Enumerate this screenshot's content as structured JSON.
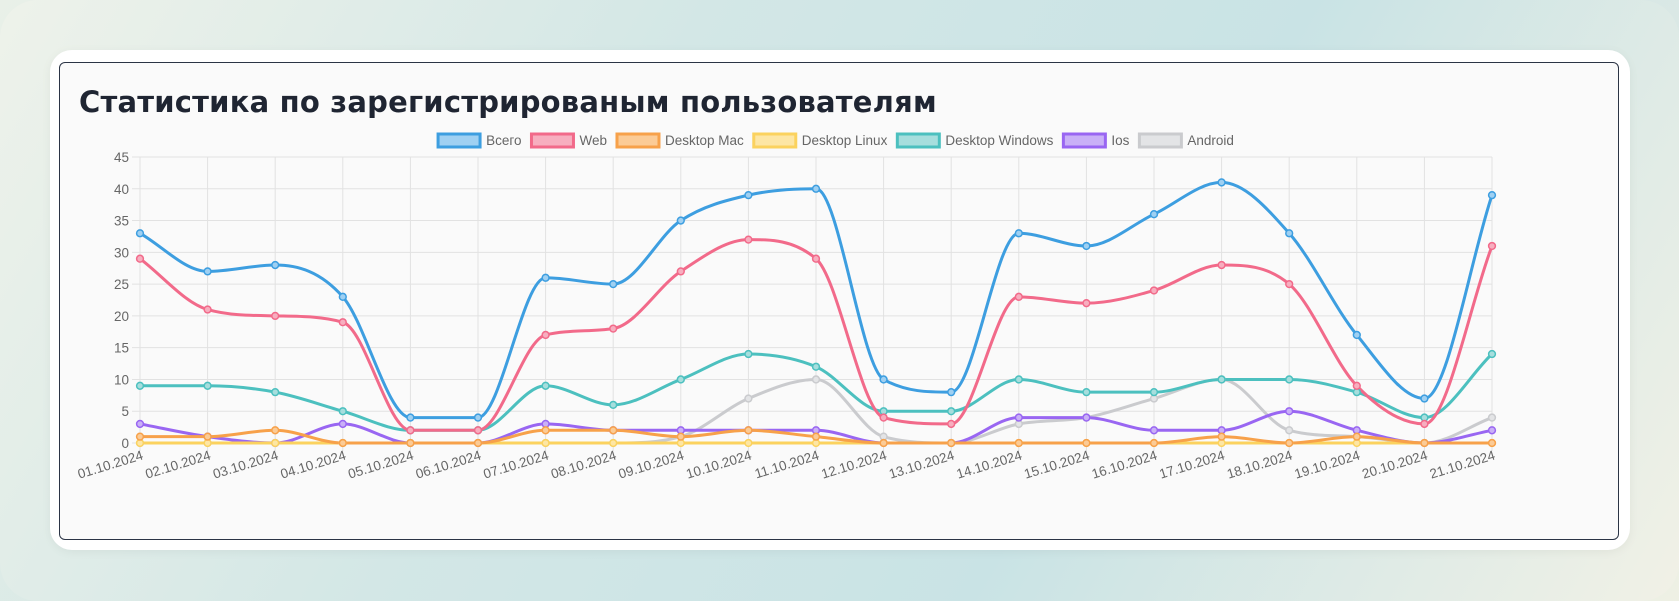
{
  "page": {
    "title": "Статистика по зарегистрированым пользователям"
  },
  "chart_data": {
    "type": "line",
    "title": "Статистика по зарегистрированым пользователям",
    "xlabel": "",
    "ylabel": "",
    "ylim": [
      0,
      45
    ],
    "yticks": [
      "0",
      "5",
      "10",
      "15",
      "20",
      "25",
      "30",
      "35",
      "40",
      "45"
    ],
    "grid": true,
    "legend_position": "top",
    "categories": [
      "01.10.2024",
      "02.10.2024",
      "03.10.2024",
      "04.10.2024",
      "05.10.2024",
      "06.10.2024",
      "07.10.2024",
      "08.10.2024",
      "09.10.2024",
      "10.10.2024",
      "11.10.2024",
      "12.10.2024",
      "13.10.2024",
      "14.10.2024",
      "15.10.2024",
      "16.10.2024",
      "17.10.2024",
      "18.10.2024",
      "19.10.2024",
      "20.10.2024",
      "21.10.2024"
    ],
    "series": [
      {
        "name": "Всего",
        "color": "#3d9ee0",
        "fill": "#9fd0f2",
        "values": [
          33,
          27,
          28,
          23,
          4,
          4,
          26,
          25,
          35,
          39,
          40,
          10,
          8,
          33,
          31,
          36,
          41,
          33,
          17,
          7,
          39
        ]
      },
      {
        "name": "Web",
        "color": "#f26a8a",
        "fill": "#f7aebf",
        "values": [
          29,
          21,
          20,
          19,
          2,
          2,
          17,
          18,
          27,
          32,
          29,
          4,
          3,
          23,
          22,
          24,
          28,
          25,
          9,
          3,
          31
        ]
      },
      {
        "name": "Desktop Mac",
        "color": "#f7a14a",
        "fill": "#fbcb96",
        "values": [
          1,
          1,
          2,
          0,
          0,
          0,
          2,
          2,
          1,
          2,
          1,
          0,
          0,
          0,
          0,
          0,
          1,
          0,
          1,
          0,
          0
        ]
      },
      {
        "name": "Desktop Linux",
        "color": "#fbd25e",
        "fill": "#fde6a4",
        "values": [
          0,
          0,
          0,
          0,
          0,
          0,
          0,
          0,
          0,
          0,
          0,
          0,
          0,
          0,
          0,
          0,
          0,
          0,
          0,
          0,
          0
        ]
      },
      {
        "name": "Desktop Windows",
        "color": "#4cc0bf",
        "fill": "#a6dedd",
        "values": [
          9,
          9,
          8,
          5,
          2,
          2,
          9,
          6,
          10,
          14,
          12,
          5,
          5,
          10,
          8,
          8,
          10,
          10,
          8,
          4,
          14
        ]
      },
      {
        "name": "Ios",
        "color": "#9966f2",
        "fill": "#c9b0f7",
        "values": [
          3,
          1,
          0,
          3,
          0,
          0,
          3,
          2,
          2,
          2,
          2,
          0,
          0,
          4,
          4,
          2,
          2,
          5,
          2,
          0,
          2
        ]
      },
      {
        "name": "Android",
        "color": "#cacbce",
        "fill": "#e3e4e6",
        "values": [
          0,
          0,
          0,
          0,
          0,
          0,
          0,
          0,
          1,
          7,
          10,
          1,
          0,
          3,
          4,
          7,
          10,
          2,
          1,
          0,
          4
        ]
      }
    ]
  }
}
